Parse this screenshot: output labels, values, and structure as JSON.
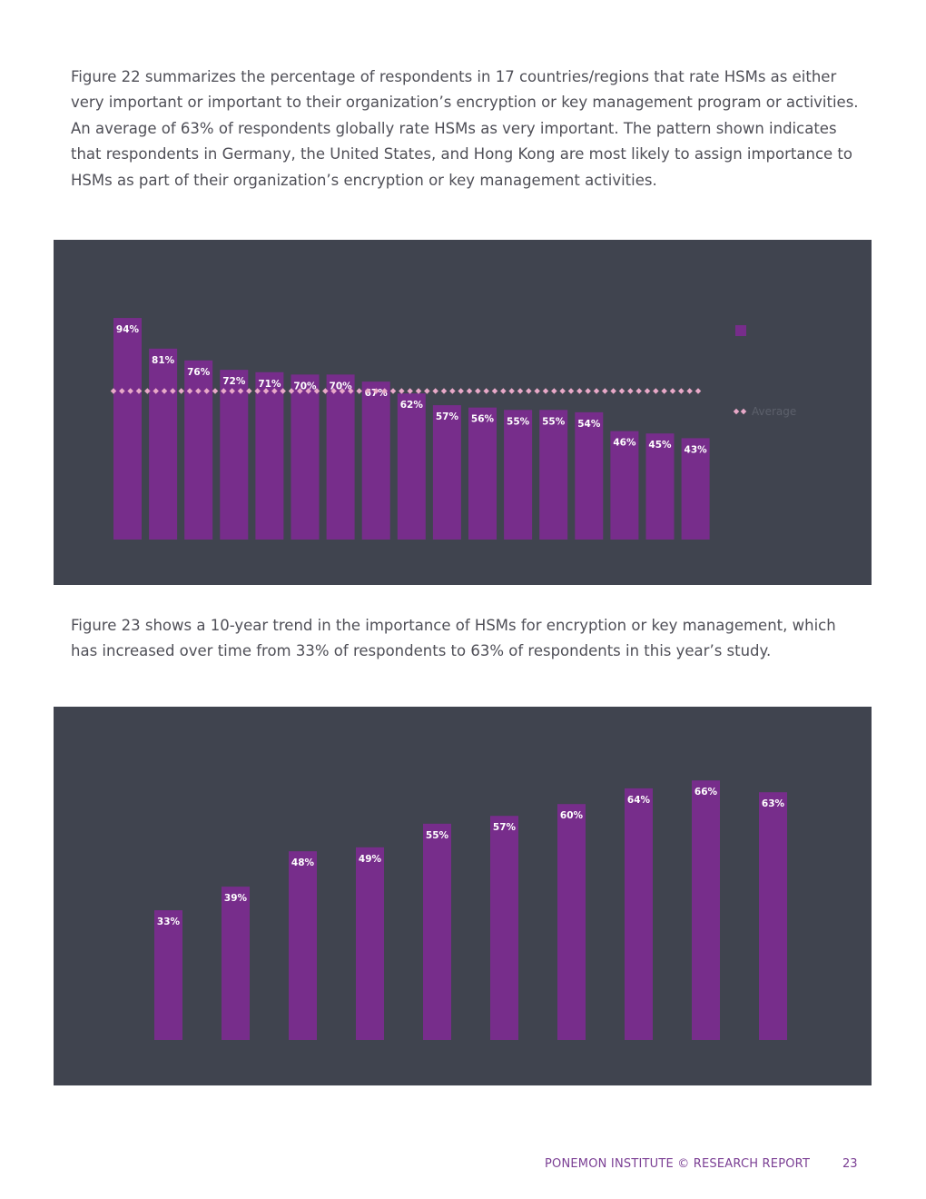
{
  "paragraphs": {
    "p1": "Figure 22 summarizes the percentage of respondents in 17 countries/regions that rate HSMs as either very important or important to their organization’s encryption or key management program or activities. An average of 63% of respondents globally rate HSMs as very important. The pattern shown indicates that respondents in Germany, the United States, and Hong Kong are most likely to assign importance to HSMs as part of their organization’s encryption or key management activities.",
    "p2": "Figure 23 shows a 10-year trend in the importance of HSMs for encryption or key management, which has increased over time from 33% of respondents to 63% of respondents in this year’s study."
  },
  "footer": {
    "text": "PONEMON INSTITUTE © RESEARCH REPORT",
    "page": "23"
  },
  "colors": {
    "panel": "#40444f",
    "bar": "#772d8b",
    "average_marker": "#e8a9c8",
    "footer": "#7b3f94"
  },
  "chart_data": [
    {
      "type": "bar",
      "values": [
        94,
        81,
        76,
        72,
        71,
        70,
        70,
        67,
        62,
        57,
        56,
        55,
        55,
        54,
        46,
        45,
        43
      ],
      "value_labels": [
        "94%",
        "81%",
        "76%",
        "72%",
        "71%",
        "70%",
        "70%",
        "67%",
        "62%",
        "57%",
        "56%",
        "55%",
        "55%",
        "54%",
        "46%",
        "45%",
        "43%"
      ],
      "average": 63,
      "legend": [
        {
          "marker": "square",
          "color": "#772d8b",
          "label": ""
        },
        {
          "marker": "diamond-line",
          "color": "#e8a9c8",
          "label": "Average"
        }
      ],
      "legend_position": "right",
      "ylim": [
        0,
        100
      ],
      "grid": false
    },
    {
      "type": "bar",
      "values": [
        33,
        39,
        48,
        49,
        55,
        57,
        60,
        64,
        66,
        63
      ],
      "value_labels": [
        "33%",
        "39%",
        "48%",
        "49%",
        "55%",
        "57%",
        "60%",
        "64%",
        "66%",
        "63%"
      ],
      "ylim": [
        0,
        66
      ],
      "grid": false
    }
  ]
}
